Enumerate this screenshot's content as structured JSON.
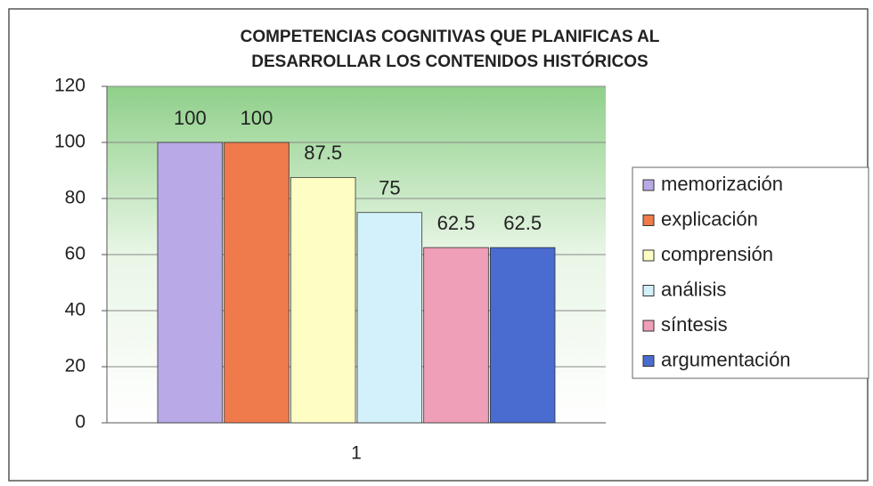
{
  "chart_data": {
    "type": "bar",
    "title": [
      "COMPETENCIAS COGNITIVAS QUE PLANIFICAS AL",
      "DESARROLLAR LOS CONTENIDOS HISTÓRICOS"
    ],
    "categories": [
      "1"
    ],
    "series": [
      {
        "name": "memorización",
        "color": "#b9a9e6",
        "values": [
          100
        ]
      },
      {
        "name": "explicación",
        "color": "#ef7a4c",
        "values": [
          100
        ]
      },
      {
        "name": "comprensión",
        "color": "#fdfdc4",
        "values": [
          87.5
        ]
      },
      {
        "name": "análisis",
        "color": "#d2f1fa",
        "values": [
          75
        ]
      },
      {
        "name": "síntesis",
        "color": "#ef9fb8",
        "values": [
          62.5
        ]
      },
      {
        "name": "argumentación",
        "color": "#4a6bd0",
        "values": [
          62.5
        ]
      }
    ],
    "ylim": [
      0,
      120
    ],
    "yticks": [
      0,
      20,
      40,
      60,
      80,
      100,
      120
    ],
    "grid": true,
    "legend": "right"
  }
}
